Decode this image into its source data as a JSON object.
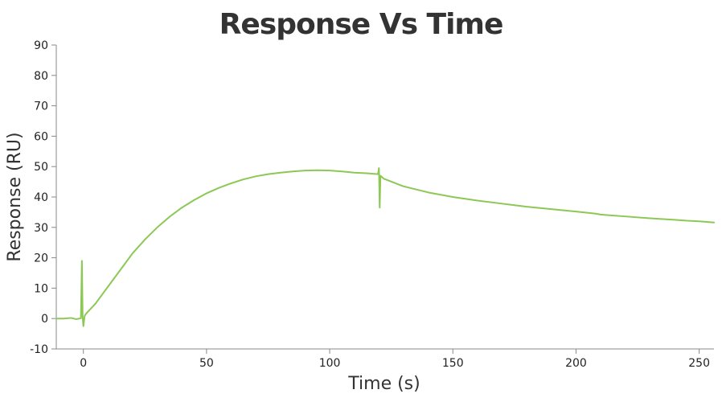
{
  "chart_data": {
    "type": "line",
    "title": "Response Vs Time",
    "xlabel": "Time (s)",
    "ylabel": "Response (RU)",
    "xlim": [
      -11,
      256
    ],
    "ylim": [
      -10,
      90
    ],
    "x_ticks": [
      0,
      50,
      100,
      150,
      200,
      250
    ],
    "y_ticks": [
      -10,
      0,
      10,
      20,
      30,
      40,
      50,
      60,
      70,
      80,
      90
    ],
    "grid": false,
    "legend": "none",
    "series": [
      {
        "color": "#8cc855",
        "points": [
          [
            -11,
            0.0
          ],
          [
            -8,
            0.0
          ],
          [
            -5,
            0.2
          ],
          [
            -3,
            -0.2
          ],
          [
            -1,
            0.1
          ],
          [
            -0.6,
            19.0
          ],
          [
            -0.3,
            0.5
          ],
          [
            0,
            -2.5
          ],
          [
            0.5,
            0.8
          ],
          [
            1,
            1.5
          ],
          [
            5,
            5.0
          ],
          [
            10,
            10.5
          ],
          [
            15,
            16.0
          ],
          [
            20,
            21.5
          ],
          [
            25,
            26.0
          ],
          [
            30,
            30.0
          ],
          [
            35,
            33.5
          ],
          [
            40,
            36.5
          ],
          [
            45,
            39.0
          ],
          [
            50,
            41.2
          ],
          [
            55,
            43.0
          ],
          [
            60,
            44.5
          ],
          [
            65,
            45.8
          ],
          [
            70,
            46.8
          ],
          [
            75,
            47.5
          ],
          [
            80,
            48.0
          ],
          [
            85,
            48.4
          ],
          [
            90,
            48.7
          ],
          [
            95,
            48.8
          ],
          [
            100,
            48.7
          ],
          [
            105,
            48.4
          ],
          [
            110,
            48.0
          ],
          [
            115,
            47.8
          ],
          [
            119.6,
            47.5
          ],
          [
            120,
            49.5
          ],
          [
            120.3,
            36.5
          ],
          [
            120.6,
            47.0
          ],
          [
            122,
            46.0
          ],
          [
            130,
            43.5
          ],
          [
            140,
            41.5
          ],
          [
            150,
            40.0
          ],
          [
            160,
            38.8
          ],
          [
            170,
            37.8
          ],
          [
            180,
            36.8
          ],
          [
            190,
            36.0
          ],
          [
            200,
            35.2
          ],
          [
            208,
            34.5
          ],
          [
            210,
            34.2
          ],
          [
            220,
            33.6
          ],
          [
            230,
            33.0
          ],
          [
            240,
            32.5
          ],
          [
            245,
            32.2
          ],
          [
            250,
            32.0
          ],
          [
            256,
            31.6
          ]
        ]
      }
    ]
  }
}
